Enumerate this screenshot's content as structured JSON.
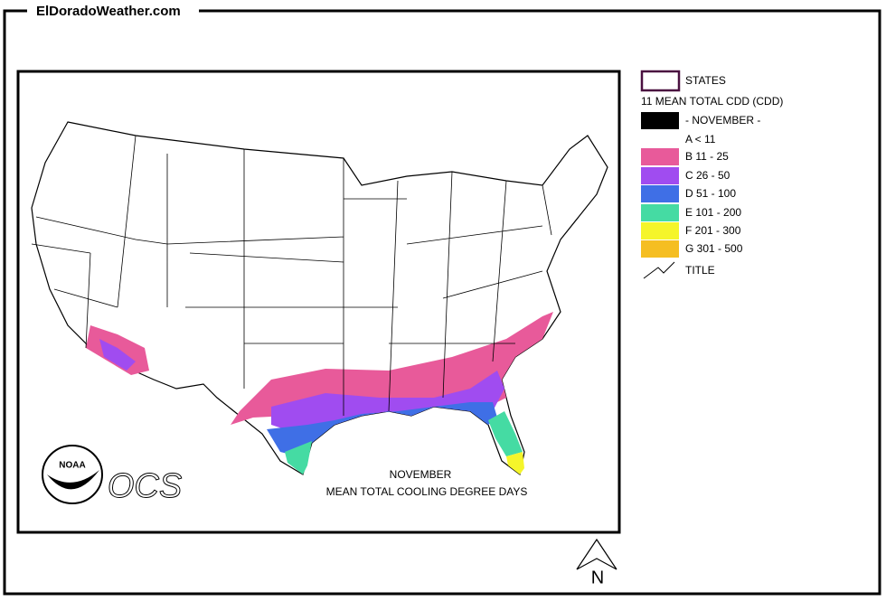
{
  "header": {
    "site": "ElDoradoWeather.com"
  },
  "legend": {
    "items": [
      {
        "label": "STATES"
      },
      {
        "label": "11 MEAN TOTAL CDD (CDD)"
      },
      {
        "label": "- NOVEMBER -"
      },
      {
        "label": "A < 11"
      },
      {
        "label": "B 11 - 25"
      },
      {
        "label": "C 26 - 50"
      },
      {
        "label": "D 51 - 100"
      },
      {
        "label": "E 101 - 200"
      },
      {
        "label": "F 201 - 300"
      },
      {
        "label": "G 301 - 500"
      },
      {
        "label": "TITLE"
      }
    ]
  },
  "map": {
    "title_lines": [
      "NOVEMBER",
      "MEAN TOTAL COOLING DEGREE DAYS"
    ],
    "logo": "NOAA",
    "ocs": "OCS",
    "north": "N"
  }
}
